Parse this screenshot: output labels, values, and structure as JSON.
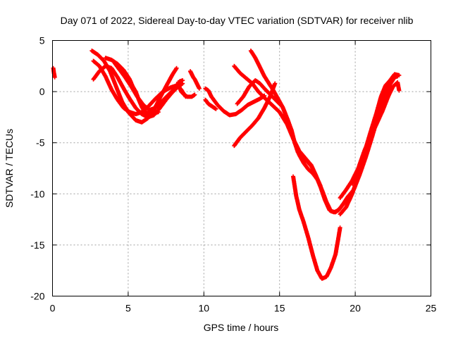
{
  "chart_data": {
    "type": "scatter",
    "title": "Day 071 of 2022, Sidereal Day-to-day VTEC variation (SDTVAR) for receiver nlib",
    "xlabel": "GPS time / hours",
    "ylabel": "SDTVAR / TECUs",
    "xlim": [
      0,
      25
    ],
    "ylim": [
      -20,
      5
    ],
    "xticks": [
      0,
      5,
      10,
      15,
      20,
      25
    ],
    "yticks": [
      5,
      0,
      -5,
      -10,
      -15,
      -20
    ],
    "grid": true,
    "marker": "+",
    "color": "#ff0000",
    "series": [
      {
        "name": "s1",
        "points": [
          [
            0.05,
            2.3
          ],
          [
            0.1,
            1.8
          ],
          [
            0.15,
            1.4
          ]
        ]
      },
      {
        "name": "s2",
        "points": [
          [
            2.6,
            4.0
          ],
          [
            3.0,
            3.6
          ],
          [
            3.4,
            3.0
          ],
          [
            3.8,
            2.0
          ],
          [
            4.2,
            0.5
          ],
          [
            4.6,
            -1.0
          ],
          [
            5.0,
            -2.0
          ],
          [
            5.5,
            -2.8
          ],
          [
            5.9,
            -3.0
          ],
          [
            6.3,
            -2.6
          ],
          [
            6.7,
            -1.8
          ],
          [
            7.1,
            -0.6
          ],
          [
            7.5,
            0.5
          ],
          [
            7.9,
            1.6
          ],
          [
            8.2,
            2.3
          ]
        ]
      },
      {
        "name": "s3",
        "points": [
          [
            2.7,
            3.0
          ],
          [
            3.1,
            2.5
          ],
          [
            3.5,
            1.5
          ],
          [
            3.9,
            0.2
          ],
          [
            4.3,
            -0.8
          ],
          [
            4.7,
            -1.6
          ],
          [
            5.1,
            -2.0
          ],
          [
            5.5,
            -2.2
          ],
          [
            5.9,
            -2.0
          ],
          [
            6.3,
            -1.5
          ],
          [
            6.8,
            -0.7
          ],
          [
            7.3,
            0.0
          ],
          [
            7.8,
            0.4
          ],
          [
            8.2,
            0.6
          ],
          [
            8.5,
            0.2
          ],
          [
            8.8,
            -0.5
          ]
        ]
      },
      {
        "name": "s4",
        "points": [
          [
            2.7,
            1.2
          ],
          [
            3.1,
            2.0
          ],
          [
            3.5,
            2.5
          ],
          [
            3.9,
            2.3
          ],
          [
            4.3,
            1.4
          ],
          [
            4.7,
            0.3
          ],
          [
            5.1,
            -0.7
          ],
          [
            5.5,
            -1.6
          ],
          [
            5.9,
            -2.2
          ],
          [
            6.3,
            -2.5
          ],
          [
            6.7,
            -2.3
          ],
          [
            7.1,
            -1.6
          ],
          [
            7.5,
            -0.8
          ],
          [
            7.9,
            -0.1
          ],
          [
            8.3,
            0.5
          ],
          [
            8.6,
            0.8
          ]
        ]
      },
      {
        "name": "s5",
        "points": [
          [
            3.5,
            3.3
          ],
          [
            3.9,
            3.1
          ],
          [
            4.3,
            2.7
          ],
          [
            4.7,
            2.1
          ],
          [
            5.1,
            1.2
          ],
          [
            5.3,
            0.5
          ],
          [
            5.5,
            0.0
          ],
          [
            5.7,
            -0.8
          ],
          [
            5.9,
            -1.5
          ],
          [
            6.1,
            -2.0
          ],
          [
            6.5,
            -2.2
          ],
          [
            7.0,
            -2.0
          ]
        ]
      },
      {
        "name": "s6",
        "points": [
          [
            4.1,
            2.8
          ],
          [
            4.4,
            2.2
          ],
          [
            4.8,
            1.4
          ],
          [
            5.2,
            0.5
          ],
          [
            5.6,
            -0.5
          ],
          [
            6.0,
            -1.3
          ],
          [
            6.4,
            -1.8
          ],
          [
            6.8,
            -1.6
          ],
          [
            7.2,
            -1.0
          ],
          [
            7.6,
            -0.4
          ],
          [
            8.0,
            0.2
          ],
          [
            8.4,
            1.0
          ],
          [
            8.6,
            1.1
          ]
        ]
      },
      {
        "name": "s7",
        "points": [
          [
            9.1,
            2.0
          ],
          [
            9.2,
            1.7
          ],
          [
            9.3,
            1.4
          ],
          [
            9.4,
            1.2
          ],
          [
            9.5,
            0.9
          ],
          [
            9.6,
            0.6
          ],
          [
            9.7,
            0.3
          ]
        ]
      },
      {
        "name": "s8",
        "points": [
          [
            10.1,
            0.3
          ],
          [
            10.3,
            0.1
          ],
          [
            10.5,
            -0.5
          ],
          [
            10.9,
            -1.3
          ],
          [
            11.3,
            -1.9
          ],
          [
            11.7,
            -2.3
          ],
          [
            12.1,
            -2.2
          ],
          [
            12.5,
            -1.8
          ],
          [
            12.9,
            -1.3
          ],
          [
            13.3,
            -1.0
          ],
          [
            13.7,
            -0.7
          ],
          [
            14.0,
            -0.4
          ]
        ]
      },
      {
        "name": "s9",
        "points": [
          [
            10.1,
            -0.8
          ],
          [
            10.3,
            -1.2
          ],
          [
            10.5,
            -1.4
          ],
          [
            10.8,
            -1.7
          ]
        ]
      },
      {
        "name": "s10",
        "points": [
          [
            12.0,
            -5.3
          ],
          [
            12.4,
            -4.5
          ],
          [
            12.8,
            -3.9
          ],
          [
            13.2,
            -3.3
          ],
          [
            13.6,
            -2.6
          ],
          [
            14.0,
            -1.6
          ],
          [
            14.4,
            -0.4
          ],
          [
            14.7,
            0.8
          ]
        ]
      },
      {
        "name": "s11",
        "points": [
          [
            12.2,
            -1.2
          ],
          [
            12.6,
            -0.5
          ],
          [
            13.0,
            0.5
          ],
          [
            13.4,
            1.1
          ],
          [
            13.7,
            0.8
          ],
          [
            14.0,
            0.3
          ],
          [
            14.4,
            -0.3
          ],
          [
            14.8,
            -0.9
          ],
          [
            15.2,
            -1.5
          ],
          [
            15.5,
            -2.6
          ],
          [
            15.8,
            -3.8
          ],
          [
            16.0,
            -5.0
          ],
          [
            16.3,
            -6.2
          ],
          [
            16.6,
            -7.0
          ],
          [
            16.9,
            -7.6
          ],
          [
            17.2,
            -8.0
          ],
          [
            17.5,
            -8.6
          ],
          [
            17.8,
            -9.6
          ],
          [
            18.1,
            -10.8
          ],
          [
            18.4,
            -11.7
          ],
          [
            18.7,
            -11.8
          ],
          [
            19.0,
            -11.4
          ],
          [
            19.3,
            -10.8
          ]
        ]
      },
      {
        "name": "s12",
        "points": [
          [
            12.0,
            2.5
          ],
          [
            12.4,
            1.8
          ],
          [
            12.8,
            1.3
          ],
          [
            13.2,
            0.8
          ],
          [
            13.6,
            0.0
          ],
          [
            14.0,
            -0.6
          ],
          [
            14.5,
            -1.3
          ],
          [
            15.0,
            -2.0
          ],
          [
            15.5,
            -3.2
          ],
          [
            15.9,
            -4.6
          ],
          [
            16.3,
            -5.8
          ],
          [
            16.7,
            -6.5
          ],
          [
            17.1,
            -7.2
          ],
          [
            17.4,
            -8.2
          ],
          [
            17.7,
            -9.3
          ],
          [
            18.0,
            -10.6
          ],
          [
            18.3,
            -11.6
          ],
          [
            18.6,
            -11.8
          ],
          [
            18.9,
            -11.6
          ],
          [
            19.2,
            -11.0
          ],
          [
            19.5,
            -10.3
          ],
          [
            19.9,
            -9.6
          ],
          [
            20.3,
            -8.1
          ],
          [
            20.7,
            -6.4
          ],
          [
            21.1,
            -4.5
          ],
          [
            21.4,
            -3.0
          ],
          [
            21.7,
            -1.6
          ],
          [
            22.0,
            -0.3
          ],
          [
            22.3,
            0.8
          ],
          [
            22.5,
            1.3
          ]
        ]
      },
      {
        "name": "s13",
        "points": [
          [
            13.1,
            4.0
          ],
          [
            13.4,
            3.3
          ],
          [
            13.7,
            2.4
          ],
          [
            14.0,
            1.5
          ],
          [
            14.3,
            0.8
          ],
          [
            14.6,
            0.1
          ],
          [
            14.9,
            -0.7
          ],
          [
            15.2,
            -1.5
          ],
          [
            15.6,
            -3.0
          ],
          [
            15.9,
            -4.5
          ],
          [
            16.2,
            -5.9
          ],
          [
            16.5,
            -6.5
          ],
          [
            16.8,
            -6.8
          ],
          [
            17.1,
            -7.3
          ],
          [
            17.4,
            -8.2
          ],
          [
            17.7,
            -9.2
          ]
        ]
      },
      {
        "name": "s14",
        "points": [
          [
            15.9,
            -8.3
          ],
          [
            16.1,
            -10.2
          ],
          [
            16.3,
            -11.5
          ],
          [
            16.6,
            -12.8
          ],
          [
            16.9,
            -14.3
          ],
          [
            17.2,
            -16.0
          ],
          [
            17.5,
            -17.5
          ],
          [
            17.8,
            -18.3
          ],
          [
            18.1,
            -18.1
          ],
          [
            18.4,
            -17.2
          ],
          [
            18.7,
            -15.9
          ],
          [
            18.9,
            -14.2
          ],
          [
            19.0,
            -13.3
          ]
        ]
      },
      {
        "name": "s15",
        "points": [
          [
            19.0,
            -12.0
          ],
          [
            19.4,
            -11.3
          ],
          [
            19.8,
            -10.0
          ],
          [
            20.2,
            -8.2
          ],
          [
            20.6,
            -6.0
          ],
          [
            21.0,
            -4.0
          ],
          [
            21.4,
            -2.1
          ],
          [
            21.7,
            -0.5
          ],
          [
            22.0,
            0.6
          ],
          [
            22.3,
            1.1
          ],
          [
            22.6,
            1.7
          ],
          [
            22.9,
            1.6
          ]
        ]
      },
      {
        "name": "s16",
        "points": [
          [
            19.0,
            -10.4
          ],
          [
            19.4,
            -9.6
          ],
          [
            19.8,
            -8.7
          ],
          [
            20.2,
            -7.5
          ],
          [
            20.6,
            -5.8
          ],
          [
            21.0,
            -4.4
          ],
          [
            21.4,
            -3.2
          ],
          [
            21.8,
            -1.9
          ],
          [
            22.2,
            -0.4
          ],
          [
            22.5,
            0.5
          ],
          [
            22.8,
            0.9
          ],
          [
            22.9,
            0.1
          ]
        ]
      },
      {
        "name": "s17",
        "points": [
          [
            19.8,
            -9.0
          ],
          [
            20.2,
            -7.7
          ],
          [
            20.6,
            -6.3
          ],
          [
            21.0,
            -4.7
          ],
          [
            21.4,
            -3.0
          ],
          [
            21.7,
            -1.4
          ],
          [
            22.0,
            -0.2
          ],
          [
            22.3,
            0.7
          ],
          [
            22.6,
            1.4
          ],
          [
            22.8,
            1.5
          ]
        ]
      },
      {
        "name": "s18",
        "points": [
          [
            8.3,
            0.9
          ],
          [
            8.4,
            0.4
          ],
          [
            8.5,
            0.0
          ],
          [
            8.7,
            -0.3
          ],
          [
            8.9,
            -0.5
          ],
          [
            9.2,
            -0.5
          ],
          [
            9.4,
            -0.3
          ]
        ]
      }
    ]
  }
}
